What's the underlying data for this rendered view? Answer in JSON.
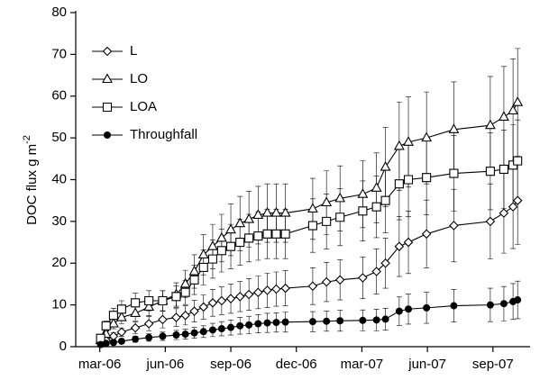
{
  "chart_data": {
    "type": "line",
    "y_label": {
      "text": "DOC flux g m",
      "superscript": "-2"
    },
    "x": [
      3.04,
      3.29,
      3.63,
      4.0,
      4.63,
      5.25,
      5.88,
      6.5,
      6.92,
      7.33,
      7.75,
      8.17,
      8.58,
      9.0,
      9.42,
      9.83,
      10.25,
      10.67,
      11.08,
      11.5,
      12.75,
      13.38,
      14.0,
      15.04,
      15.67,
      16.08,
      16.71,
      17.13,
      17.96,
      19.21,
      20.88,
      21.5,
      21.92,
      22.13
    ],
    "series": [
      {
        "name": "L",
        "marker": "diamond",
        "color": "#000000",
        "values": [
          0.8,
          1.5,
          2.5,
          3.5,
          4.5,
          5.5,
          6.5,
          7,
          7.5,
          8.5,
          9.5,
          10.5,
          11,
          11.5,
          12,
          12.5,
          13,
          13.5,
          13.8,
          14,
          14.5,
          15.5,
          16,
          16.5,
          18,
          20,
          24,
          25,
          27,
          29,
          30,
          32,
          33.5,
          35
        ],
        "errors": [
          0.2,
          0.5,
          0.8,
          1,
          1.4,
          1.7,
          2,
          2.1,
          2.3,
          2.6,
          2.9,
          3.2,
          3.3,
          3.5,
          3.6,
          3.8,
          3.9,
          4.1,
          4.1,
          4.2,
          4.4,
          4.7,
          4.8,
          5,
          5.4,
          6,
          7.2,
          7.5,
          8.1,
          8.7,
          9,
          9.6,
          10,
          10.5
        ]
      },
      {
        "name": "LO",
        "marker": "triangle",
        "color": "#000000",
        "values": [
          1.5,
          3,
          5.5,
          7,
          8,
          9.5,
          11,
          12.5,
          15,
          18,
          22,
          24,
          26,
          28,
          29.5,
          30.5,
          31.5,
          32,
          32,
          32,
          33,
          34.5,
          35.5,
          36.5,
          38,
          43,
          48,
          49,
          50,
          52,
          53,
          55,
          56.5,
          58.5
        ],
        "errors": [
          0.3,
          0.7,
          1.2,
          1.5,
          1.8,
          2.1,
          2.4,
          2.8,
          3.3,
          4,
          4.8,
          5.3,
          5.7,
          6.2,
          6.5,
          6.7,
          6.9,
          7,
          7,
          7,
          7.3,
          7.6,
          7.8,
          8,
          8.4,
          9.5,
          10.6,
          10.8,
          11,
          11.4,
          11.7,
          12.1,
          12.4,
          12.9
        ]
      },
      {
        "name": "LOA",
        "marker": "square",
        "color": "#000000",
        "values": [
          2,
          5,
          7.5,
          9,
          10.5,
          11,
          11,
          12,
          13,
          16,
          19,
          21,
          23,
          24,
          25,
          26,
          26.5,
          27,
          27,
          27,
          29,
          30,
          31,
          32.5,
          33.5,
          35,
          39,
          40,
          40.5,
          41.5,
          42,
          42.5,
          43.5,
          44.5
        ],
        "errors": [
          0.4,
          1.1,
          1.7,
          2,
          2.3,
          2.4,
          2.4,
          2.6,
          2.9,
          3.5,
          4.2,
          4.6,
          5.1,
          5.3,
          5.5,
          5.7,
          5.8,
          5.9,
          5.9,
          5.9,
          6.4,
          6.6,
          6.8,
          7.2,
          7.4,
          7.7,
          8.6,
          8.8,
          8.9,
          9.1,
          9.2,
          9.4,
          9.6,
          9.8
        ]
      },
      {
        "name": "Throughfall",
        "marker": "circle",
        "color": "#000000",
        "values": [
          0.5,
          0.8,
          1,
          1.3,
          1.8,
          2.2,
          2.5,
          2.8,
          3,
          3.3,
          3.6,
          4,
          4.3,
          4.6,
          5,
          5.2,
          5.5,
          5.7,
          5.8,
          5.9,
          6,
          6.1,
          6.2,
          6.3,
          6.4,
          6.6,
          8.5,
          9,
          9.3,
          9.8,
          10,
          10.3,
          10.8,
          11.2
        ],
        "errors": [
          0.2,
          0.3,
          0.4,
          0.5,
          0.7,
          0.9,
          1,
          1.1,
          1.2,
          1.3,
          1.4,
          1.6,
          1.7,
          1.8,
          2,
          2.1,
          2.2,
          2.3,
          2.3,
          2.4,
          2.4,
          2.4,
          2.5,
          2.5,
          2.6,
          2.6,
          3.4,
          3.6,
          3.7,
          3.9,
          4,
          4.1,
          4.3,
          4.5
        ]
      }
    ],
    "xlim": [
      1.9,
      22.7
    ],
    "xticks": [
      {
        "value": 3,
        "label": "mar-06"
      },
      {
        "value": 6,
        "label": "jun-06"
      },
      {
        "value": 9,
        "label": "sep-06"
      },
      {
        "value": 12,
        "label": "dec-06"
      },
      {
        "value": 15,
        "label": "mar-07"
      },
      {
        "value": 18,
        "label": "jun-07"
      },
      {
        "value": 21,
        "label": "sep-07"
      }
    ],
    "ylim": [
      0,
      80
    ],
    "yticks": [
      0,
      10,
      20,
      30,
      40,
      50,
      60,
      70,
      80
    ],
    "legend": "upper-left"
  }
}
